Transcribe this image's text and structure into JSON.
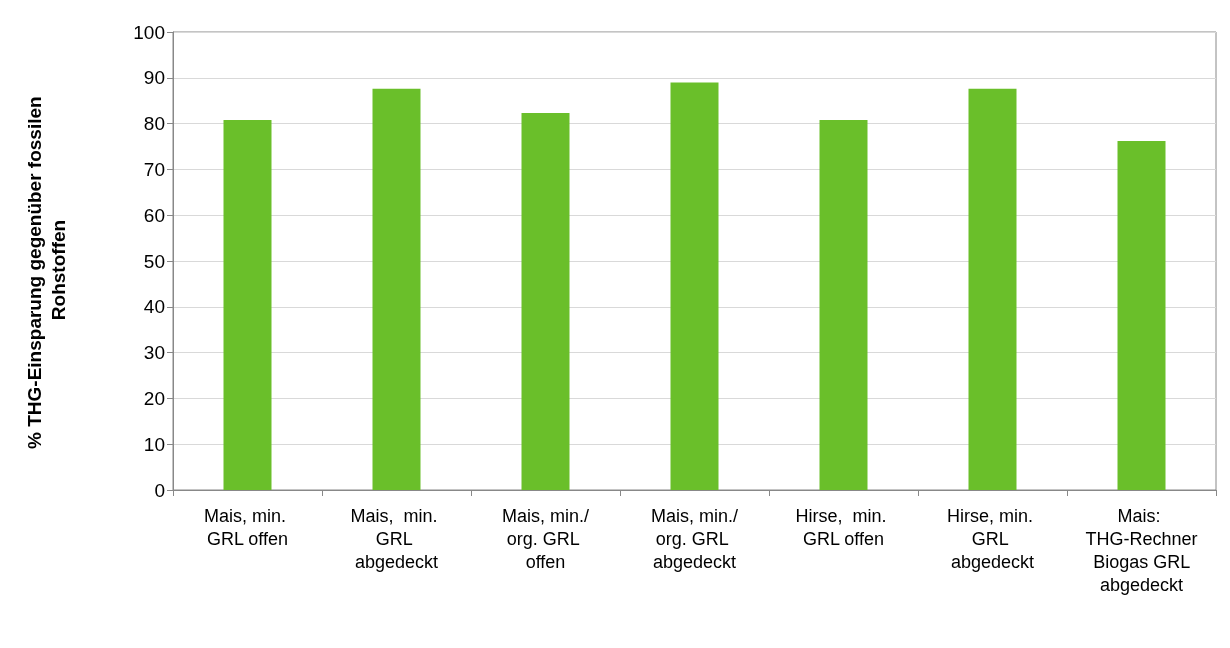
{
  "chart_data": {
    "type": "bar",
    "ylabel": "% THG-Einsparung gegenüber fossilen Rohstoffen",
    "categories": [
      "Mais, min. GRL offen",
      "Mais,  min. GRL abgedeckt",
      "Mais, min./org. GRL offen",
      "Mais, min./org. GRL abgedeckt",
      "Hirse,  min. GRL offen",
      "Hirse, min. GRL abgedeckt",
      "Mais: THG-Rechner Biogas GRL abgedeckt"
    ],
    "values": [
      80.8,
      87.6,
      82.3,
      89.0,
      80.8,
      87.6,
      76.2
    ],
    "color": "#6abf2a",
    "ylim": [
      0,
      100
    ],
    "yticks": [
      0,
      10,
      20,
      30,
      40,
      50,
      60,
      70,
      80,
      90,
      100
    ],
    "grid": "y"
  }
}
